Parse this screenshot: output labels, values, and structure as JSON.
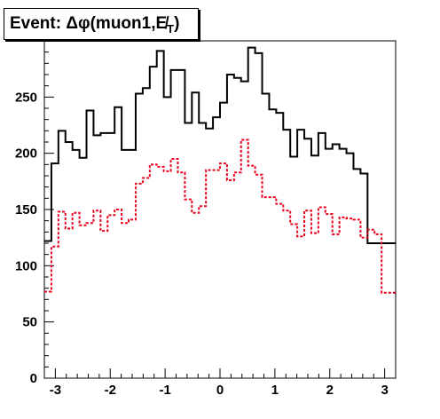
{
  "title": "Event: Δφ(muon1,E̸",
  "title_subscript": "T",
  "title_close": ")",
  "chart_data": {
    "type": "histogram",
    "title": "Event: Δφ(muon1,E̸T)",
    "xlabel": "",
    "ylabel": "",
    "xlim": [
      -3.2,
      3.2
    ],
    "ylim": [
      0,
      300
    ],
    "x_ticks": [
      -3,
      -2,
      -1,
      0,
      1,
      2,
      3
    ],
    "y_ticks": [
      0,
      50,
      100,
      150,
      200,
      250
    ],
    "bin_width": 0.128,
    "series": [
      {
        "color": "#000000",
        "style": "solid",
        "values": [
          122,
          191,
          220,
          210,
          203,
          196,
          238,
          216,
          218,
          218,
          241,
          203,
          203,
          253,
          258,
          277,
          291,
          250,
          274,
          274,
          227,
          254,
          227,
          222,
          232,
          245,
          270,
          267,
          264,
          294,
          289,
          253,
          239,
          236,
          221,
          197,
          221,
          213,
          198,
          218,
          204,
          208,
          204,
          200,
          186,
          182,
          120,
          120,
          120,
          120
        ]
      },
      {
        "color": "#e8001c",
        "style": "dashed",
        "values": [
          77,
          117,
          148,
          133,
          147,
          136,
          138,
          149,
          131,
          145,
          150,
          138,
          141,
          173,
          178,
          190,
          188,
          184,
          195,
          183,
          159,
          147,
          153,
          185,
          185,
          191,
          176,
          183,
          212,
          189,
          181,
          161,
          161,
          155,
          149,
          137,
          126,
          149,
          129,
          152,
          146,
          128,
          143,
          142,
          141,
          125,
          132,
          128,
          76,
          76
        ]
      }
    ]
  }
}
